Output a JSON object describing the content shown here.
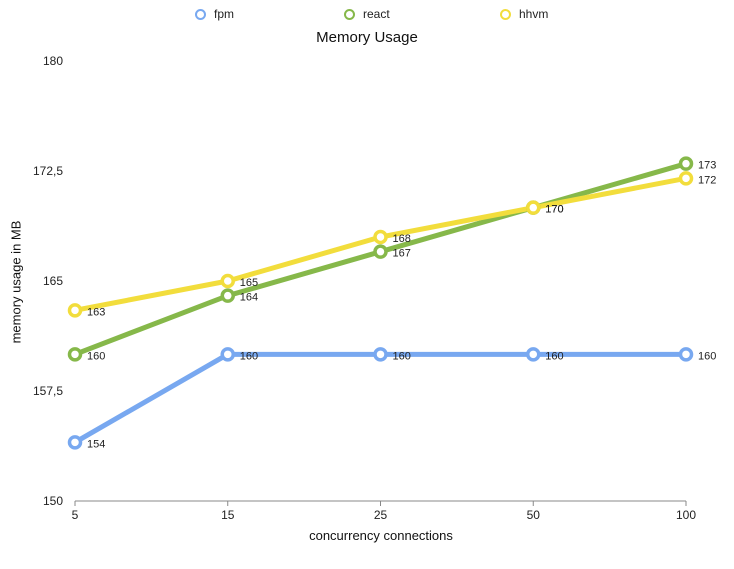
{
  "chart_data": {
    "type": "line",
    "title": "Memory Usage",
    "xlabel": "concurrency connections",
    "ylabel": "memory usage in MB",
    "categories": [
      "5",
      "15",
      "25",
      "50",
      "100"
    ],
    "ylim": [
      150,
      180
    ],
    "yticks": [
      "150",
      "157,5",
      "165",
      "172,5",
      "180"
    ],
    "series": [
      {
        "name": "fpm",
        "color": "#78a8f0",
        "values": [
          154,
          160,
          160,
          160,
          160
        ],
        "labels": [
          "154",
          "160",
          "160",
          "160",
          "160"
        ]
      },
      {
        "name": "react",
        "color": "#86b84a",
        "values": [
          160,
          164,
          167,
          170,
          173
        ],
        "labels": [
          "160",
          "164",
          "167",
          "170",
          "173"
        ]
      },
      {
        "name": "hhvm",
        "color": "#f2dd3c",
        "values": [
          163,
          165,
          168,
          170,
          172
        ],
        "labels": [
          "163",
          "165",
          "168",
          "170",
          "172"
        ]
      }
    ],
    "legend": "top"
  }
}
